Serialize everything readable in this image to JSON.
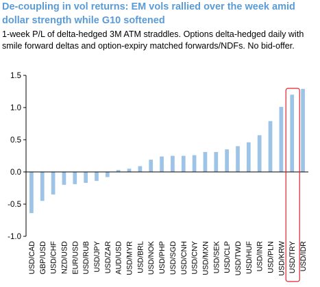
{
  "chart_data": {
    "type": "bar",
    "title": "De-coupling in vol returns: EM vols rallied over the week amid dollar strength while G10 softened",
    "subtitle": "1-week P/L of delta-hedged 3M ATM straddles. Options delta-hedged daily with smile forward deltas and option-expiry matched forwards/NDFs. No bid-offer.",
    "xlabel": "",
    "ylabel": "",
    "ylim": [
      -1.0,
      1.5
    ],
    "yticks": [
      "1.5",
      "1.0",
      "0.5",
      "0.0",
      "-0.5",
      "-1.0"
    ],
    "ytick_values": [
      1.5,
      1.0,
      0.5,
      0.0,
      -0.5,
      -1.0
    ],
    "categories": [
      "USD/CAD",
      "GBP/USD",
      "USD/CHF",
      "NZD/USD",
      "EUR/USD",
      "USD/RUB",
      "USD/JPY",
      "USD/ZAR",
      "AUD/USD",
      "USD/MYR",
      "USD/BRL",
      "USD/NOK",
      "USD/PHP",
      "USD/SGD",
      "USD/CNH",
      "USD/CNY",
      "USD/MXN",
      "USD/SEK",
      "USD/CLP",
      "USD/TWD",
      "USD/HUF",
      "USD/INR",
      "USD/PLN",
      "USD/KRW",
      "USD/TRY",
      "USD/IDR"
    ],
    "values": [
      -0.64,
      -0.45,
      -0.35,
      -0.2,
      -0.19,
      -0.17,
      -0.14,
      -0.08,
      0.03,
      0.05,
      0.09,
      0.19,
      0.24,
      0.25,
      0.25,
      0.26,
      0.31,
      0.31,
      0.35,
      0.4,
      0.46,
      0.57,
      0.79,
      1.01,
      1.2,
      1.29
    ],
    "bar_color": "#9dc3e6",
    "highlight_category": "USD/TRY",
    "highlight_color": "#e2202a",
    "grid": false,
    "legend": "none"
  }
}
